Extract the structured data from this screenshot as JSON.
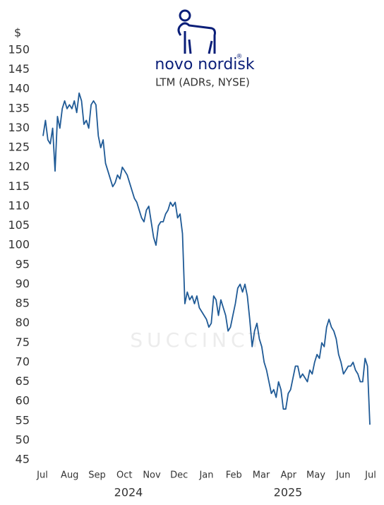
{
  "chart_data": {
    "type": "line",
    "brand": "novo nordisk",
    "brand_mark": "®",
    "subtitle": "LTM (ADRs, NYSE)",
    "y_unit": "$",
    "watermark": "SUCCINCT",
    "xtick_labels": [
      "Jul",
      "Aug",
      "Sep",
      "Oct",
      "Nov",
      "Dec",
      "Jan",
      "Feb",
      "Mar",
      "Apr",
      "May",
      "Jun",
      "Jul"
    ],
    "years": [
      "2024",
      "2025"
    ],
    "color": "#1f5a96",
    "ylim": [
      45,
      150
    ],
    "yticks": [
      45,
      50,
      55,
      60,
      65,
      70,
      75,
      80,
      85,
      90,
      95,
      100,
      105,
      110,
      115,
      120,
      125,
      130,
      135,
      140,
      145,
      150
    ],
    "values": [
      128,
      132,
      127,
      126,
      130,
      119,
      133,
      130,
      135,
      137,
      135,
      136,
      135,
      137,
      134,
      139,
      137,
      131,
      132,
      130,
      136,
      137,
      136,
      128,
      125,
      127,
      121,
      119,
      117,
      115,
      116,
      118,
      117,
      120,
      119,
      118,
      116,
      114,
      112,
      111,
      109,
      107,
      106,
      109,
      110,
      106,
      102,
      100,
      105,
      106,
      106,
      108,
      109,
      111,
      110,
      111,
      107,
      108,
      103,
      85,
      88,
      86,
      87,
      85,
      87,
      84,
      83,
      82,
      81,
      79,
      80,
      87,
      86,
      82,
      86,
      84,
      82,
      78,
      79,
      82,
      85,
      89,
      90,
      88,
      90,
      87,
      81,
      74,
      78,
      80,
      76,
      74,
      70,
      68,
      65,
      62,
      63,
      61,
      65,
      63,
      58,
      58,
      62,
      63,
      66,
      69,
      69,
      66,
      67,
      66,
      65,
      68,
      67,
      70,
      72,
      71,
      75,
      74,
      79,
      81,
      79,
      78,
      76,
      72,
      70,
      67,
      68,
      69,
      69,
      70,
      68,
      67,
      65,
      65,
      71,
      69,
      54
    ]
  }
}
